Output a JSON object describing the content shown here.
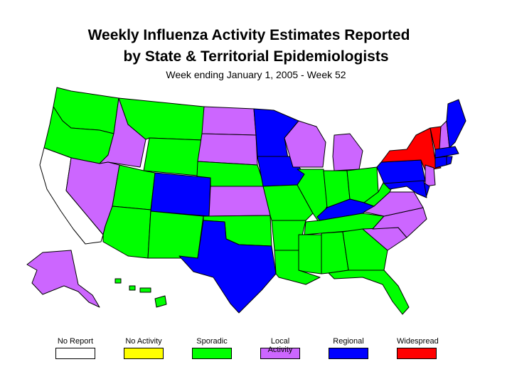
{
  "title_line1": "Weekly Influenza Activity Estimates Reported",
  "title_line2": "by State & Territorial Epidemiologists",
  "subtitle": "Week ending January 1, 2005 - Week 52",
  "legend": [
    {
      "label": "No Report",
      "color": "#ffffff"
    },
    {
      "label": "No Activity",
      "color": "#ffff00"
    },
    {
      "label": "Sporadic",
      "color": "#00ff00"
    },
    {
      "label": "Local Activity",
      "color": "#cc66ff"
    },
    {
      "label": "Regional",
      "color": "#0000ff"
    },
    {
      "label": "Widespread",
      "color": "#ff0000"
    }
  ],
  "colors": {
    "no_report": "#ffffff",
    "no_activity": "#ffff00",
    "sporadic": "#00ff00",
    "local": "#cc66ff",
    "regional": "#0000ff",
    "widespread": "#ff0000"
  },
  "states": {
    "WA": "sporadic",
    "OR": "sporadic",
    "CA": "no_report",
    "ID": "local",
    "NV": "local",
    "MT": "sporadic",
    "WY": "sporadic",
    "UT": "sporadic",
    "AZ": "sporadic",
    "CO": "regional",
    "NM": "sporadic",
    "ND": "local",
    "SD": "local",
    "NE": "sporadic",
    "KS": "local",
    "OK": "sporadic",
    "TX": "regional",
    "MN": "regional",
    "IA": "regional",
    "MO": "sporadic",
    "AR": "sporadic",
    "LA": "sporadic",
    "WI": "local",
    "IL": "sporadic",
    "MI": "local",
    "IN": "sporadic",
    "OH": "sporadic",
    "KY": "regional",
    "TN": "sporadic",
    "MS": "sporadic",
    "AL": "sporadic",
    "GA": "sporadic",
    "FL": "sporadic",
    "SC": "local",
    "NC": "local",
    "VA": "local",
    "WV": "sporadic",
    "PA": "regional",
    "NY": "widespread",
    "VT": "widespread",
    "NH": "local",
    "ME": "regional",
    "MA": "regional",
    "CT": "regional",
    "RI": "regional",
    "NJ": "local",
    "DE": "regional",
    "MD": "regional",
    "AK": "local",
    "HI": "sporadic"
  }
}
